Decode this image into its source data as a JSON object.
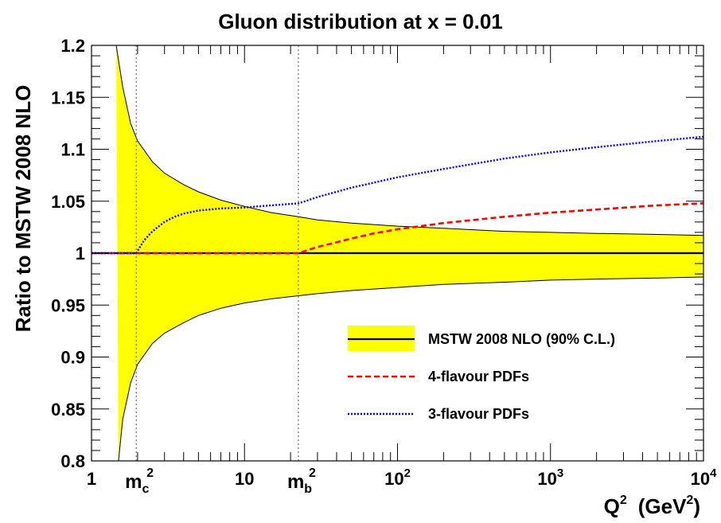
{
  "chart_data": {
    "type": "line",
    "title": "Gluon distribution at x = 0.01",
    "ylabel": "Ratio to MSTW 2008 NLO",
    "xlabel": {
      "base": "Q",
      "exp": "2",
      "unit_open": "(GeV",
      "unit_exp": "2",
      "unit_close": ")"
    },
    "xscale": "log",
    "xlim": [
      1,
      10000
    ],
    "ylim": [
      0.8,
      1.2
    ],
    "grid": false,
    "legend_position": "bottom-right",
    "x_ticks": [
      {
        "value": 1,
        "label": "1"
      },
      {
        "value": 10,
        "label": "10"
      },
      {
        "value": 100,
        "base": "10",
        "exp": "2"
      },
      {
        "value": 1000,
        "base": "10",
        "exp": "3"
      },
      {
        "value": 10000,
        "base": "10",
        "exp": "4"
      }
    ],
    "y_ticks": [
      {
        "value": 0.8,
        "label": "0.8"
      },
      {
        "value": 0.85,
        "label": "0.85"
      },
      {
        "value": 0.9,
        "label": "0.9"
      },
      {
        "value": 0.95,
        "label": "0.95"
      },
      {
        "value": 1.0,
        "label": "1"
      },
      {
        "value": 1.05,
        "label": "1.05"
      },
      {
        "value": 1.1,
        "label": "1.1"
      },
      {
        "value": 1.15,
        "label": "1.15"
      },
      {
        "value": 1.2,
        "label": "1.2"
      }
    ],
    "annotations": [
      {
        "base": "m",
        "sub": "c",
        "sup": "2",
        "x": 1.96
      },
      {
        "base": "m",
        "sub": "b",
        "sup": "2",
        "x": 22.5
      }
    ],
    "band": {
      "name": "MSTW 2008 NLO (90% C.L.)",
      "color": "#ffff00",
      "x": [
        1.45,
        1.6,
        1.8,
        2.0,
        2.5,
        3.0,
        4.0,
        5.0,
        7.0,
        10,
        15,
        22.5,
        30,
        50,
        100,
        200,
        500,
        1000,
        2000,
        5000,
        10000
      ],
      "upper": [
        1.2,
        1.16,
        1.125,
        1.108,
        1.088,
        1.077,
        1.066,
        1.059,
        1.051,
        1.045,
        1.039,
        1.035,
        1.032,
        1.029,
        1.026,
        1.024,
        1.021,
        1.02,
        1.019,
        1.018,
        1.017
      ],
      "x_low": [
        1.5,
        1.6,
        1.8,
        2.0,
        2.5,
        3.0,
        4.0,
        5.0,
        7.0,
        10,
        15,
        22.5,
        30,
        50,
        100,
        200,
        500,
        1000,
        2000,
        5000,
        10000
      ],
      "lower": [
        0.8,
        0.84,
        0.875,
        0.893,
        0.913,
        0.923,
        0.933,
        0.94,
        0.947,
        0.952,
        0.956,
        0.959,
        0.961,
        0.964,
        0.967,
        0.97,
        0.972,
        0.974,
        0.975,
        0.976,
        0.977
      ]
    },
    "series": [
      {
        "name": "MSTW 2008 NLO (90% C.L.)",
        "color": "#000000",
        "style": "solid",
        "x": [
          1,
          10000
        ],
        "y": [
          1.0,
          1.0
        ]
      },
      {
        "name": "4-flavour PDFs",
        "color": "#ff0000",
        "style": "dashed",
        "x": [
          1,
          22.5,
          30,
          50,
          70,
          100,
          200,
          500,
          1000,
          2000,
          5000,
          10000
        ],
        "y": [
          1.0,
          1.0,
          1.006,
          1.014,
          1.019,
          1.023,
          1.029,
          1.035,
          1.039,
          1.042,
          1.046,
          1.048
        ]
      },
      {
        "name": "3-flavour PDFs",
        "color": "#0000ff",
        "style": "dotted",
        "x": [
          1,
          1.96,
          2.2,
          2.5,
          3.0,
          3.5,
          4.0,
          5.0,
          7.0,
          10,
          15,
          22.5,
          25,
          30,
          50,
          100,
          200,
          500,
          1000,
          2000,
          5000,
          10000
        ],
        "y": [
          1.0,
          1.0,
          1.012,
          1.021,
          1.03,
          1.035,
          1.038,
          1.041,
          1.043,
          1.044,
          1.046,
          1.048,
          1.05,
          1.054,
          1.063,
          1.073,
          1.081,
          1.091,
          1.097,
          1.102,
          1.108,
          1.112
        ]
      }
    ]
  }
}
